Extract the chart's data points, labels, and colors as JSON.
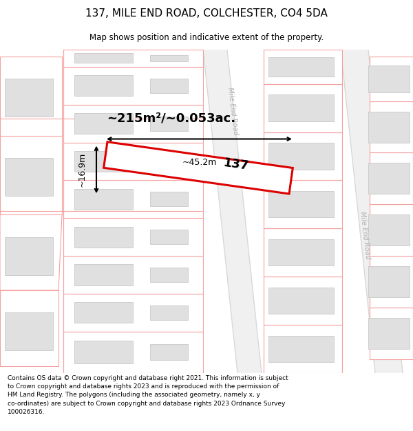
{
  "title": "137, MILE END ROAD, COLCHESTER, CO4 5DA",
  "subtitle": "Map shows position and indicative extent of the property.",
  "footer": "Contains OS data © Crown copyright and database right 2021. This information is subject to Crown copyright and database rights 2023 and is reproduced with the permission of HM Land Registry. The polygons (including the associated geometry, namely x, y co-ordinates) are subject to Crown copyright and database rights 2023 Ordnance Survey 100026316.",
  "area_text": "~215m²/~0.053ac.",
  "width_text": "~45.2m",
  "height_text": "~16.9m",
  "property_number": "137",
  "bg_color": "#ffffff",
  "map_bg": "#ffffff",
  "pink": "#f5a0a0",
  "gray_fill": "#e0e0e0",
  "gray_edge": "#c8c8c8",
  "red": "#dd0000",
  "road_gray": "#d8d8d8",
  "road_label": "Mile End Road"
}
